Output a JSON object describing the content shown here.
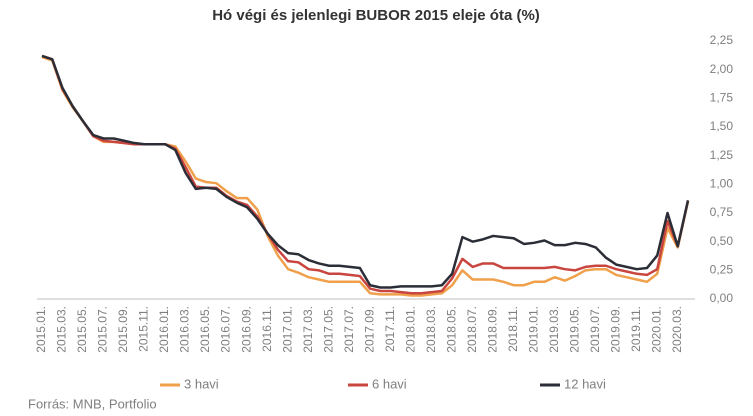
{
  "chart_data": {
    "type": "line",
    "title": "Hó végi és jelenlegi BUBOR 2015 eleje óta (%)",
    "source": "Forrás: MNB, Portfolio",
    "categories": [
      "2015.01.",
      null,
      "2015.03.",
      null,
      "2015.05.",
      null,
      "2015.07.",
      null,
      "2015.09.",
      null,
      "2015.11.",
      null,
      "2016.01.",
      null,
      "2016.03.",
      null,
      "2016.05.",
      null,
      "2016.07.",
      null,
      "2016.09.",
      null,
      "2016.11.",
      null,
      "2017.01.",
      null,
      "2017.03.",
      null,
      "2017.05.",
      null,
      "2017.07.",
      null,
      "2017.09.",
      null,
      "2017.11.",
      null,
      "2018.01.",
      null,
      "2018.03.",
      null,
      "2018.05.",
      null,
      "2018.07.",
      null,
      "2018.09.",
      null,
      "2018.11.",
      null,
      "2019.01.",
      null,
      "2019.03.",
      null,
      "2019.05.",
      null,
      "2019.07.",
      null,
      "2019.09.",
      null,
      "2019.11.",
      null,
      "2020.01.",
      null,
      "2020.03.",
      null
    ],
    "series": [
      {
        "name": "3 havi",
        "color": "#f0a04b",
        "values": [
          2.11,
          2.08,
          1.82,
          1.67,
          1.55,
          1.42,
          1.37,
          1.37,
          1.36,
          1.35,
          1.35,
          1.35,
          1.35,
          1.33,
          1.2,
          1.05,
          1.02,
          1.01,
          0.94,
          0.88,
          0.88,
          0.78,
          0.55,
          0.38,
          0.26,
          0.23,
          0.19,
          0.17,
          0.15,
          0.15,
          0.15,
          0.15,
          0.05,
          0.04,
          0.04,
          0.04,
          0.03,
          0.03,
          0.04,
          0.05,
          0.12,
          0.25,
          0.17,
          0.17,
          0.17,
          0.15,
          0.12,
          0.12,
          0.15,
          0.15,
          0.19,
          0.16,
          0.2,
          0.25,
          0.26,
          0.26,
          0.21,
          0.19,
          0.17,
          0.15,
          0.22,
          0.62,
          0.45,
          0.85
        ]
      },
      {
        "name": "6 havi",
        "color": "#c9453f",
        "values": [
          2.12,
          2.09,
          1.83,
          1.68,
          1.55,
          1.42,
          1.38,
          1.37,
          1.36,
          1.35,
          1.35,
          1.35,
          1.35,
          1.31,
          1.15,
          0.98,
          0.97,
          0.97,
          0.9,
          0.85,
          0.82,
          0.72,
          0.57,
          0.43,
          0.33,
          0.32,
          0.26,
          0.25,
          0.22,
          0.22,
          0.21,
          0.2,
          0.09,
          0.07,
          0.07,
          0.06,
          0.05,
          0.05,
          0.06,
          0.07,
          0.18,
          0.35,
          0.28,
          0.31,
          0.31,
          0.27,
          0.27,
          0.27,
          0.27,
          0.27,
          0.28,
          0.26,
          0.25,
          0.28,
          0.29,
          0.29,
          0.26,
          0.24,
          0.22,
          0.21,
          0.26,
          0.68,
          0.46,
          0.86
        ]
      },
      {
        "name": "12 havi",
        "color": "#2b2e36",
        "values": [
          2.12,
          2.09,
          1.84,
          1.68,
          1.55,
          1.43,
          1.4,
          1.4,
          1.38,
          1.36,
          1.35,
          1.35,
          1.35,
          1.3,
          1.1,
          0.96,
          0.97,
          0.96,
          0.89,
          0.84,
          0.8,
          0.7,
          0.57,
          0.47,
          0.4,
          0.39,
          0.34,
          0.31,
          0.29,
          0.29,
          0.28,
          0.27,
          0.12,
          0.1,
          0.1,
          0.11,
          0.11,
          0.11,
          0.11,
          0.12,
          0.22,
          0.54,
          0.5,
          0.52,
          0.55,
          0.54,
          0.53,
          0.48,
          0.49,
          0.51,
          0.47,
          0.47,
          0.49,
          0.48,
          0.45,
          0.36,
          0.3,
          0.28,
          0.26,
          0.27,
          0.38,
          0.75,
          0.46,
          0.86
        ]
      }
    ],
    "ylim": [
      0,
      2.25
    ],
    "yticks": [
      {
        "value": 0,
        "label": "0,00"
      },
      {
        "value": 0.25,
        "label": "0,25"
      },
      {
        "value": 0.5,
        "label": "0,50"
      },
      {
        "value": 0.75,
        "label": "0,75"
      },
      {
        "value": 1,
        "label": "1,00"
      },
      {
        "value": 1.25,
        "label": "1,25"
      },
      {
        "value": 1.5,
        "label": "1,50"
      },
      {
        "value": 1.75,
        "label": "1,75"
      },
      {
        "value": 2,
        "label": "2,00"
      },
      {
        "value": 2.25,
        "label": "2,25"
      }
    ],
    "grid": false,
    "legend": "bottom"
  }
}
